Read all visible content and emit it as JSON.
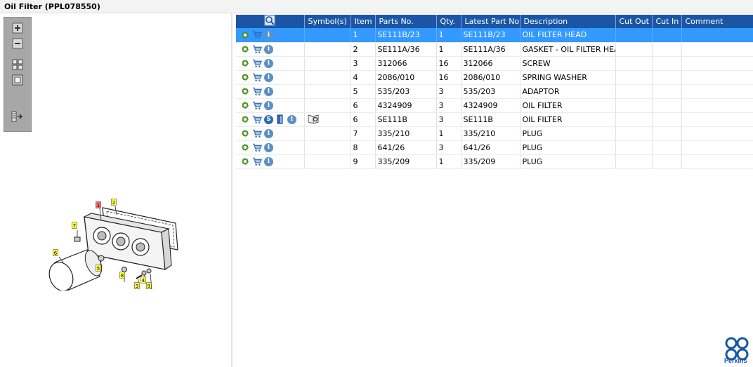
{
  "window": {
    "title": "Oil Filter (PPL078550)"
  },
  "toolbar": {
    "buttons": [
      "zoom-in-icon",
      "zoom-out-icon",
      "fit-page-icon",
      "actual-size-icon",
      "toggle-panel-icon"
    ]
  },
  "diagram": {
    "callouts": [
      "1",
      "2",
      "3",
      "4",
      "5",
      "6",
      "7",
      "8",
      "9"
    ]
  },
  "table": {
    "headers": {
      "search": "",
      "symbols": "Symbol(s)",
      "item": "Item",
      "parts_no": "Parts No.",
      "qty": "Qty.",
      "latest_part_no": "Latest Part No.",
      "description": "Description",
      "cut_out": "Cut Out",
      "cut_in": "Cut In",
      "comment": "Comment"
    },
    "rows": [
      {
        "item": "1",
        "parts_no": "SE111B/23",
        "qty": "1",
        "latest": "SE111B/23",
        "description": "OIL FILTER HEAD",
        "cut_out": "",
        "cut_in": "",
        "comment": ""
      },
      {
        "item": "2",
        "parts_no": "SE111A/36",
        "qty": "1",
        "latest": "SE111A/36",
        "description": "GASKET - OIL FILTER HEAD",
        "cut_out": "",
        "cut_in": "",
        "comment": ""
      },
      {
        "item": "3",
        "parts_no": "312066",
        "qty": "16",
        "latest": "312066",
        "description": "SCREW",
        "cut_out": "",
        "cut_in": "",
        "comment": ""
      },
      {
        "item": "4",
        "parts_no": "2086/010",
        "qty": "16",
        "latest": "2086/010",
        "description": "SPRING WASHER",
        "cut_out": "",
        "cut_in": "",
        "comment": ""
      },
      {
        "item": "5",
        "parts_no": "535/203",
        "qty": "3",
        "latest": "535/203",
        "description": "ADAPTOR",
        "cut_out": "",
        "cut_in": "",
        "comment": ""
      },
      {
        "item": "6",
        "parts_no": "4324909",
        "qty": "3",
        "latest": "4324909",
        "description": "OIL FILTER",
        "cut_out": "",
        "cut_in": "",
        "comment": ""
      },
      {
        "item": "6",
        "parts_no": "SE111B",
        "qty": "3",
        "latest": "SE111B",
        "description": "OIL FILTER",
        "cut_out": "",
        "cut_in": "",
        "comment": ""
      },
      {
        "item": "7",
        "parts_no": "335/210",
        "qty": "1",
        "latest": "335/210",
        "description": "PLUG",
        "cut_out": "",
        "cut_in": "",
        "comment": ""
      },
      {
        "item": "8",
        "parts_no": "641/26",
        "qty": "3",
        "latest": "641/26",
        "description": "PLUG",
        "cut_out": "",
        "cut_in": "",
        "comment": ""
      },
      {
        "item": "9",
        "parts_no": "335/209",
        "qty": "1",
        "latest": "335/209",
        "description": "PLUG",
        "cut_out": "",
        "cut_in": "",
        "comment": ""
      }
    ],
    "icon_glyphs": {
      "info": "i",
      "service": "S"
    }
  },
  "brand": {
    "name": "Perkins",
    "color": "#1a56a5"
  },
  "colors": {
    "header": "#1a56a5",
    "selected_row": "#3399ff",
    "gear": "#5aa02c",
    "toolbar": "#a7a7a7"
  }
}
